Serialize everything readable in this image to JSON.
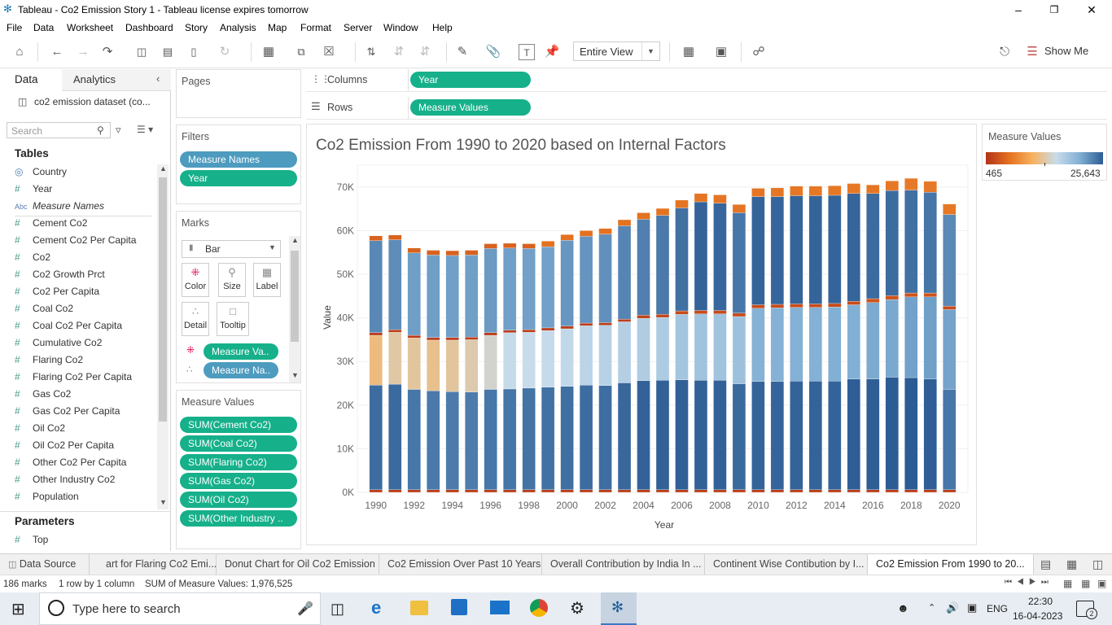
{
  "window": {
    "title": "Tableau - Co2 Emission Story 1 - Tableau license expires tomorrow"
  },
  "menu": [
    "File",
    "Data",
    "Worksheet",
    "Dashboard",
    "Story",
    "Analysis",
    "Map",
    "Format",
    "Server",
    "Window",
    "Help"
  ],
  "toolbar": {
    "fit_select": "Entire View",
    "show_me": "Show Me"
  },
  "data_pane": {
    "tab_data": "Data",
    "tab_analytics": "Analytics",
    "datasource": "co2 emission dataset (co...",
    "search_placeholder": "Search",
    "tables_heading": "Tables",
    "fields": [
      {
        "icon": "globe",
        "name": "Country"
      },
      {
        "icon": "#",
        "name": "Year"
      },
      {
        "icon": "Abc",
        "name": "Measure Names"
      },
      {
        "icon": "#",
        "name": "Cement Co2"
      },
      {
        "icon": "#",
        "name": "Cement Co2 Per Capita"
      },
      {
        "icon": "#",
        "name": "Co2"
      },
      {
        "icon": "#",
        "name": "Co2 Growth Prct"
      },
      {
        "icon": "#",
        "name": "Co2 Per Capita"
      },
      {
        "icon": "#",
        "name": "Coal Co2"
      },
      {
        "icon": "#",
        "name": "Coal Co2 Per Capita"
      },
      {
        "icon": "#",
        "name": "Cumulative Co2"
      },
      {
        "icon": "#",
        "name": "Flaring Co2"
      },
      {
        "icon": "#",
        "name": "Flaring Co2 Per Capita"
      },
      {
        "icon": "#",
        "name": "Gas Co2"
      },
      {
        "icon": "#",
        "name": "Gas Co2 Per Capita"
      },
      {
        "icon": "#",
        "name": "Oil Co2"
      },
      {
        "icon": "#",
        "name": "Oil Co2 Per Capita"
      },
      {
        "icon": "#",
        "name": "Other Co2 Per Capita"
      },
      {
        "icon": "#",
        "name": "Other Industry Co2"
      },
      {
        "icon": "#",
        "name": "Population"
      }
    ],
    "parameters_heading": "Parameters",
    "parameters": [
      {
        "icon": "#",
        "name": "Top"
      }
    ]
  },
  "shelves": {
    "pages": "Pages",
    "filters": "Filters",
    "filter_pills": [
      "Measure Names",
      "Year"
    ],
    "marks": "Marks",
    "mark_type": "Bar",
    "mark_buttons": [
      "Color",
      "Size",
      "Label",
      "Detail",
      "Tooltip"
    ],
    "mark_pills": [
      "Measure Va..",
      "Measure Na.."
    ],
    "measure_values": "Measure Values",
    "measure_value_pills": [
      "SUM(Cement Co2)",
      "SUM(Coal Co2)",
      "SUM(Flaring Co2)",
      "SUM(Gas Co2)",
      "SUM(Oil Co2)",
      "SUM(Other Industry .."
    ],
    "columns_label": "Columns",
    "columns_pill": "Year",
    "rows_label": "Rows",
    "rows_pill": "Measure Values"
  },
  "legend": {
    "title": "Measure Values",
    "min": "465",
    "max": "25,643"
  },
  "chart_data": {
    "type": "bar",
    "stacked": true,
    "title": "Co2 Emission From 1990 to 2020 based on Internal Factors",
    "xlabel": "Year",
    "ylabel": "Value",
    "ylim": [
      0,
      75000
    ],
    "yticks": [
      0,
      10000,
      20000,
      30000,
      40000,
      50000,
      60000,
      70000
    ],
    "ytick_labels": [
      "0K",
      "10K",
      "20K",
      "30K",
      "40K",
      "50K",
      "60K",
      "70K"
    ],
    "xtick_labels": [
      "1990",
      "1992",
      "1994",
      "1996",
      "1998",
      "2000",
      "2002",
      "2004",
      "2006",
      "2008",
      "2010",
      "2012",
      "2014",
      "2016",
      "2018",
      "2020"
    ],
    "grid": true,
    "categories": [
      "1990",
      "1991",
      "1992",
      "1993",
      "1994",
      "1995",
      "1996",
      "1997",
      "1998",
      "1999",
      "2000",
      "2001",
      "2002",
      "2003",
      "2004",
      "2005",
      "2006",
      "2007",
      "2008",
      "2009",
      "2010",
      "2011",
      "2012",
      "2013",
      "2014",
      "2015",
      "2016",
      "2017",
      "2018",
      "2019",
      "2020"
    ],
    "segments_note": "stack order bottom-to-top; values estimated from gridlines",
    "series": [
      {
        "values": [
          600,
          600,
          600,
          600,
          600,
          600,
          600,
          600,
          600,
          600,
          600,
          600,
          600,
          600,
          600,
          600,
          600,
          600,
          600,
          600,
          600,
          600,
          600,
          600,
          600,
          600,
          600,
          600,
          600,
          600,
          600
        ]
      },
      {
        "values": [
          24000,
          24200,
          23000,
          22700,
          22500,
          22400,
          23000,
          23100,
          23300,
          23500,
          23700,
          24000,
          23900,
          24500,
          25000,
          25100,
          25200,
          25100,
          25100,
          24300,
          24800,
          24800,
          24900,
          24900,
          24900,
          25400,
          25400,
          25800,
          25700,
          25400,
          23000
        ]
      },
      {
        "values": [
          11400,
          11900,
          11800,
          11600,
          11800,
          12000,
          12400,
          12900,
          12800,
          13000,
          13200,
          13600,
          13800,
          14000,
          14300,
          14400,
          15000,
          15200,
          15200,
          15400,
          16800,
          16900,
          16900,
          16900,
          17000,
          17000,
          17500,
          17800,
          18500,
          18800,
          18300
        ]
      },
      {
        "values": [
          600,
          600,
          600,
          600,
          600,
          600,
          600,
          600,
          600,
          600,
          600,
          600,
          600,
          600,
          700,
          700,
          800,
          800,
          800,
          800,
          800,
          800,
          800,
          800,
          800,
          800,
          900,
          900,
          900,
          900,
          800
        ]
      },
      {
        "values": [
          21100,
          20600,
          18900,
          18900,
          18800,
          18800,
          19300,
          18800,
          18600,
          18600,
          19700,
          19900,
          20300,
          21400,
          22000,
          22700,
          23600,
          24900,
          24600,
          23000,
          24800,
          24700,
          24800,
          24800,
          24800,
          24700,
          24100,
          24100,
          23600,
          23100,
          21000
        ]
      },
      {
        "values": [
          1100,
          1100,
          1100,
          1100,
          1100,
          1100,
          1100,
          1100,
          1100,
          1300,
          1300,
          1300,
          1300,
          1400,
          1500,
          1600,
          1800,
          1900,
          1900,
          1900,
          1900,
          2000,
          2200,
          2200,
          2200,
          2300,
          2000,
          2200,
          2700,
          2500,
          2400
        ]
      }
    ]
  },
  "sheet_tabs": {
    "data_source": "Data Source",
    "tabs": [
      "art for Flaring Co2 Emi...",
      "Donut Chart for Oil Co2 Emission",
      "Co2 Emission Over Past 10 Years",
      "Overall Contribution by India In ...",
      "Continent Wise Contibution by I...",
      "Co2 Emission From 1990 to 20..."
    ]
  },
  "status": {
    "marks": "186 marks",
    "rows_cols": "1 row by 1 column",
    "sum": "SUM of Measure Values: 1,976,525"
  },
  "taskbar": {
    "search_placeholder": "Type here to search",
    "lang": "ENG",
    "time": "22:30",
    "date": "16-04-2023",
    "notifications": "2"
  }
}
